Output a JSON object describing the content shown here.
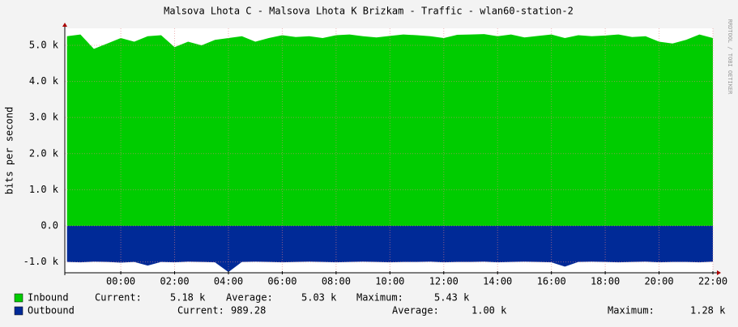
{
  "chart_data": {
    "type": "area",
    "title": "Malsova Lhota C - Malsova Lhota K Brizkam - Traffic - wlan60-station-2",
    "ylabel": "bits per second",
    "watermark": "RRDTOOL / TOBI OETIKER",
    "x": [
      -2,
      -1.5,
      -1,
      -0.5,
      0,
      0.5,
      1,
      1.5,
      2,
      2.5,
      3,
      3.5,
      4,
      4.5,
      5,
      5.5,
      6,
      6.5,
      7,
      7.5,
      8,
      8.5,
      9,
      9.5,
      10,
      10.5,
      11,
      11.5,
      12,
      12.5,
      13,
      13.5,
      14,
      14.5,
      15,
      15.5,
      16,
      16.5,
      17,
      17.5,
      18,
      18.5,
      19,
      19.5,
      20,
      20.5,
      21,
      21.5,
      22
    ],
    "xlim": [
      -2.08,
      22
    ],
    "xticks": [
      {
        "value": 0,
        "label": "00:00"
      },
      {
        "value": 2,
        "label": "02:00"
      },
      {
        "value": 4,
        "label": "04:00"
      },
      {
        "value": 6,
        "label": "06:00"
      },
      {
        "value": 8,
        "label": "08:00"
      },
      {
        "value": 10,
        "label": "10:00"
      },
      {
        "value": 12,
        "label": "12:00"
      },
      {
        "value": 14,
        "label": "14:00"
      },
      {
        "value": 16,
        "label": "16:00"
      },
      {
        "value": 18,
        "label": "18:00"
      },
      {
        "value": 20,
        "label": "20:00"
      },
      {
        "value": 22,
        "label": "22:00"
      }
    ],
    "ylim": [
      -1300,
      5470
    ],
    "yticks": [
      {
        "value": -1000,
        "label": "-1.0 k"
      },
      {
        "value": 0,
        "label": "0.0"
      },
      {
        "value": 1000,
        "label": "1.0 k"
      },
      {
        "value": 2000,
        "label": "2.0 k"
      },
      {
        "value": 3000,
        "label": "3.0 k"
      },
      {
        "value": 4000,
        "label": "4.0 k"
      },
      {
        "value": 5000,
        "label": "5.0 k"
      }
    ],
    "grid": true,
    "series": [
      {
        "name": "Inbound",
        "color": "#00cc00",
        "values": [
          5250,
          5300,
          4900,
          5050,
          5200,
          5100,
          5250,
          5280,
          4950,
          5100,
          5000,
          5150,
          5200,
          5250,
          5100,
          5200,
          5280,
          5230,
          5250,
          5200,
          5280,
          5300,
          5250,
          5220,
          5260,
          5300,
          5280,
          5250,
          5200,
          5290,
          5300,
          5310,
          5250,
          5300,
          5220,
          5260,
          5300,
          5200,
          5280,
          5250,
          5270,
          5300,
          5230,
          5250,
          5100,
          5050,
          5150,
          5300,
          5200
        ],
        "stats": [
          "Current:",
          "5.18 k",
          "Average:",
          "5.03 k",
          "Maximum:",
          "5.43 k"
        ]
      },
      {
        "name": "Outbound",
        "color": "#002a97",
        "values": [
          -1000,
          -1010,
          -990,
          -1000,
          -1020,
          -1000,
          -1100,
          -1000,
          -1010,
          -990,
          -1000,
          -1010,
          -1280,
          -1000,
          -990,
          -1000,
          -1010,
          -1000,
          -990,
          -1000,
          -1010,
          -1000,
          -990,
          -1000,
          -1010,
          -1000,
          -1000,
          -990,
          -1010,
          -1000,
          -1000,
          -990,
          -1010,
          -1000,
          -990,
          -1000,
          -1010,
          -1130,
          -1000,
          -990,
          -1000,
          -1010,
          -1000,
          -990,
          -1010,
          -1000,
          -1000,
          -1010,
          -990
        ],
        "stats": [
          "Current:",
          "989.28",
          "Average:",
          "1.00 k",
          "Maximum:",
          "1.28 k"
        ]
      }
    ]
  }
}
